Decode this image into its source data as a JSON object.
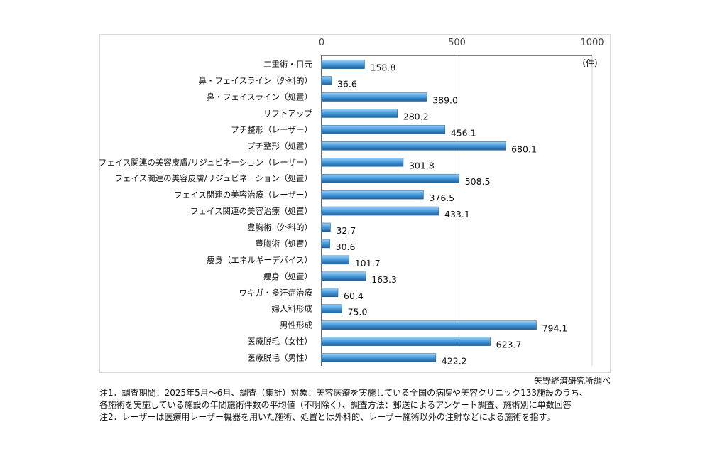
{
  "chart_data": {
    "type": "bar",
    "orientation": "horizontal",
    "categories": [
      "二重術・目元",
      "鼻・フェイスライン（外科的）",
      "鼻・フェイスライン（処置）",
      "リフトアップ",
      "プチ整形（レーザー）",
      "プチ整形（処置）",
      "フェイス関連の美容皮膚/リジュビネーション（レーザー）",
      "フェイス関連の美容皮膚/リジュビネーション（処置）",
      "フェイス関連の美容治療（レーザー）",
      "フェイス関連の美容治療（処置）",
      "豊胸術（外科的）",
      "豊胸術（処置）",
      "痩身（エネルギーデバイス）",
      "痩身（処置）",
      "ワキガ・多汗症治療",
      "婦人科形成",
      "男性形成",
      "医療脱毛（女性）",
      "医療脱毛（男性）"
    ],
    "values": [
      158.8,
      36.6,
      389.0,
      280.2,
      456.1,
      680.1,
      301.8,
      508.5,
      376.5,
      433.1,
      32.7,
      30.6,
      101.7,
      163.3,
      60.4,
      75.0,
      794.1,
      623.7,
      422.2
    ],
    "xlim": [
      0,
      1000
    ],
    "xticks": [
      "0",
      "500",
      "1000"
    ],
    "unit": "（件）",
    "axis_position": "top",
    "grid": true,
    "bar_color": "#3b8fd0"
  },
  "source": "矢野経済研究所調べ",
  "notes": [
    "注1．調査期間：2025年5月～6月、調査（集計）対象：美容医療を実施している全国の病院や美容クリニック133施設のうち、",
    "各施術を実施している施設の年間施術件数の平均値（不明除く）、調査方法：郵送によるアンケート調査、施術別に単数回答",
    "注2．レーザーは医療用レーザー機器を用いた施術、処置とは外科的、レーザー施術以外の注射などによる施術を指す。"
  ]
}
